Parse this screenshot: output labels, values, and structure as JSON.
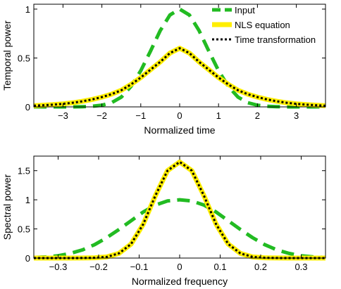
{
  "chart_data": [
    {
      "type": "line",
      "ylabel": "Temporal power",
      "xlabel": "Normalized time",
      "xlim": [
        -3.75,
        3.75
      ],
      "ylim": [
        0,
        1.05
      ],
      "xticks": [
        -3,
        -2,
        -1,
        0,
        1,
        2,
        3
      ],
      "yticks": [
        0,
        0.5,
        1
      ],
      "ytick_labels": [
        "0",
        "0.5",
        "1"
      ],
      "legend": {
        "position": "top-right",
        "entries": [
          {
            "label": "Input",
            "color": "#22bb22",
            "style": "dashed"
          },
          {
            "label": "NLS equation",
            "color": "#ffee00",
            "style": "solid"
          },
          {
            "label": "Time transformation",
            "color": "#000000",
            "style": "dotted"
          }
        ]
      },
      "series": [
        {
          "name": "Input",
          "x": [
            -3.75,
            -3.5,
            -3.25,
            -3,
            -2.75,
            -2.5,
            -2.25,
            -2,
            -1.75,
            -1.5,
            -1.25,
            -1,
            -0.75,
            -0.5,
            -0.25,
            0,
            0.25,
            0.5,
            0.75,
            1,
            1.25,
            1.5,
            1.75,
            2,
            2.25,
            2.5,
            2.75,
            3,
            3.25,
            3.5,
            3.75
          ],
          "values": [
            0,
            0,
            0,
            0,
            0,
            0.002,
            0.006,
            0.017,
            0.043,
            0.1,
            0.21,
            0.37,
            0.57,
            0.78,
            0.94,
            1,
            0.94,
            0.78,
            0.57,
            0.37,
            0.21,
            0.1,
            0.043,
            0.017,
            0.006,
            0.002,
            0,
            0,
            0,
            0,
            0
          ]
        },
        {
          "name": "NLS equation",
          "x": [
            -3.75,
            -3.5,
            -3.25,
            -3,
            -2.75,
            -2.5,
            -2.25,
            -2,
            -1.75,
            -1.5,
            -1.25,
            -1,
            -0.75,
            -0.5,
            -0.25,
            0,
            0.25,
            0.5,
            0.75,
            1,
            1.25,
            1.5,
            1.75,
            2,
            2.25,
            2.5,
            2.75,
            3,
            3.25,
            3.5,
            3.75
          ],
          "values": [
            0.012,
            0.017,
            0.023,
            0.031,
            0.042,
            0.057,
            0.076,
            0.1,
            0.13,
            0.17,
            0.23,
            0.3,
            0.38,
            0.46,
            0.55,
            0.6,
            0.55,
            0.46,
            0.38,
            0.3,
            0.23,
            0.17,
            0.13,
            0.1,
            0.076,
            0.057,
            0.042,
            0.031,
            0.023,
            0.017,
            0.012
          ]
        },
        {
          "name": "Time transformation",
          "x": [
            -3.75,
            -3.5,
            -3.25,
            -3,
            -2.75,
            -2.5,
            -2.25,
            -2,
            -1.75,
            -1.5,
            -1.25,
            -1,
            -0.75,
            -0.5,
            -0.25,
            0,
            0.25,
            0.5,
            0.75,
            1,
            1.25,
            1.5,
            1.75,
            2,
            2.25,
            2.5,
            2.75,
            3,
            3.25,
            3.5,
            3.75
          ],
          "values": [
            0.012,
            0.017,
            0.023,
            0.031,
            0.042,
            0.057,
            0.076,
            0.1,
            0.13,
            0.17,
            0.23,
            0.3,
            0.38,
            0.46,
            0.55,
            0.6,
            0.55,
            0.46,
            0.38,
            0.3,
            0.23,
            0.17,
            0.13,
            0.1,
            0.076,
            0.057,
            0.042,
            0.031,
            0.023,
            0.017,
            0.012
          ]
        }
      ]
    },
    {
      "type": "line",
      "ylabel": "Spectral power",
      "xlabel": "Normalized frequency",
      "xlim": [
        -0.36,
        0.36
      ],
      "ylim": [
        0,
        1.75
      ],
      "xticks": [
        -0.3,
        -0.2,
        -0.1,
        0,
        0.1,
        0.2,
        0.3
      ],
      "xtick_labels": [
        "-0.3",
        "-0.2",
        "-0.1",
        "0",
        "0.1",
        "0.2",
        "0.3"
      ],
      "yticks": [
        0,
        0.5,
        1,
        1.5
      ],
      "ytick_labels": [
        "0",
        "0.5",
        "1",
        "1.5"
      ],
      "series": [
        {
          "name": "Input",
          "x": [
            -0.36,
            -0.33,
            -0.3,
            -0.27,
            -0.24,
            -0.21,
            -0.18,
            -0.15,
            -0.12,
            -0.09,
            -0.06,
            -0.03,
            0,
            0.03,
            0.06,
            0.09,
            0.12,
            0.15,
            0.18,
            0.21,
            0.24,
            0.27,
            0.3,
            0.33,
            0.36
          ],
          "values": [
            0.01,
            0.02,
            0.04,
            0.08,
            0.14,
            0.23,
            0.35,
            0.49,
            0.64,
            0.79,
            0.91,
            0.98,
            1,
            0.98,
            0.91,
            0.79,
            0.64,
            0.49,
            0.35,
            0.23,
            0.14,
            0.08,
            0.04,
            0.02,
            0.01
          ]
        },
        {
          "name": "NLS equation",
          "x": [
            -0.36,
            -0.33,
            -0.3,
            -0.27,
            -0.24,
            -0.21,
            -0.18,
            -0.15,
            -0.12,
            -0.09,
            -0.06,
            -0.03,
            0,
            0.03,
            0.06,
            0.09,
            0.12,
            0.15,
            0.18,
            0.21,
            0.24,
            0.27,
            0.3,
            0.33,
            0.36
          ],
          "values": [
            0,
            0,
            0,
            0,
            0.001,
            0.005,
            0.02,
            0.08,
            0.24,
            0.58,
            1.07,
            1.5,
            1.65,
            1.5,
            1.07,
            0.58,
            0.24,
            0.08,
            0.02,
            0.005,
            0.001,
            0,
            0,
            0,
            0
          ]
        },
        {
          "name": "Time transformation",
          "x": [
            -0.36,
            -0.33,
            -0.3,
            -0.27,
            -0.24,
            -0.21,
            -0.18,
            -0.15,
            -0.12,
            -0.09,
            -0.06,
            -0.03,
            0,
            0.03,
            0.06,
            0.09,
            0.12,
            0.15,
            0.18,
            0.21,
            0.24,
            0.27,
            0.3,
            0.33,
            0.36
          ],
          "values": [
            0,
            0,
            0,
            0,
            0.001,
            0.005,
            0.02,
            0.08,
            0.24,
            0.58,
            1.07,
            1.5,
            1.65,
            1.5,
            1.07,
            0.58,
            0.24,
            0.08,
            0.02,
            0.005,
            0.001,
            0,
            0,
            0,
            0
          ]
        }
      ]
    }
  ]
}
